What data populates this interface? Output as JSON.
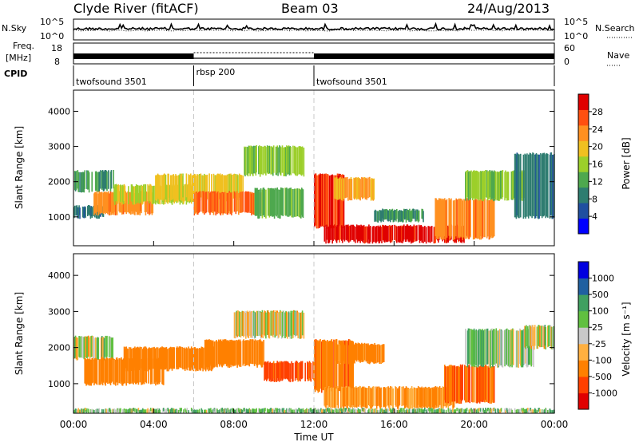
{
  "header": {
    "station": "Clyde River (fitACF)",
    "beam": "Beam 03",
    "date": "24/Aug/2013"
  },
  "top_panels": {
    "nsky_label": "N.Sky",
    "nsky_ticks": [
      "10^5",
      "10^0"
    ],
    "nsearch_label": "N.Search",
    "nsearch_ticks": [
      "10^5",
      "10^0"
    ],
    "freq_label": "Freq.",
    "freq_unit": "[MHz]",
    "freq_ticks": [
      "18",
      "8"
    ],
    "nave_label": "Nave",
    "nave_ticks": [
      "60",
      "0"
    ],
    "cpid_label": "CPID",
    "cpid_segments": [
      {
        "name": "twofsound 3501",
        "start_hour": 0,
        "end_hour": 6
      },
      {
        "name": "rbsp 200",
        "start_hour": 6,
        "end_hour": 12
      },
      {
        "name": "twofsound 3501",
        "start_hour": 12,
        "end_hour": 24
      }
    ]
  },
  "axes": {
    "xlabel": "Time UT",
    "x_ticks": [
      "00:00",
      "04:00",
      "08:00",
      "12:00",
      "16:00",
      "20:00",
      "00:00"
    ],
    "ylabel": "Slant Range [km]",
    "y_ticks": [
      "4000",
      "3000",
      "2000",
      "1000"
    ]
  },
  "colorbars": {
    "power": {
      "label": "Power [dB]",
      "ticks": [
        "28",
        "24",
        "20",
        "16",
        "12",
        "8",
        "4"
      ],
      "colors": [
        "#0000ff",
        "#1f4fa0",
        "#2e7d70",
        "#4ea84e",
        "#9ccf2a",
        "#f0c020",
        "#ff9020",
        "#ff5010",
        "#e00000"
      ]
    },
    "velocity": {
      "label": "Velocity [m s⁻¹]",
      "ticks": [
        "1000",
        "500",
        "100",
        "25",
        "-25",
        "-100",
        "-500",
        "-1000"
      ],
      "colors": [
        "#e00000",
        "#ff4000",
        "#ff8000",
        "#ffb040",
        "#c8c8c8",
        "#60c040",
        "#40a060",
        "#2060a0",
        "#0000e0"
      ]
    }
  },
  "chart_data": [
    {
      "type": "heatmap",
      "title": "",
      "xlabel": "Time UT",
      "ylabel": "Slant Range [km]",
      "xlim": [
        0,
        24
      ],
      "ylim": [
        180,
        4600
      ],
      "colorbar_label": "Power [dB]",
      "colorbar_range": [
        0,
        30
      ],
      "regions": [
        {
          "t0": 0.0,
          "t1": 2.0,
          "r0": 1750,
          "r1": 2300,
          "value": 10
        },
        {
          "t0": 0.0,
          "t1": 1.5,
          "r0": 1000,
          "r1": 1300,
          "value": 8
        },
        {
          "t0": 1.0,
          "t1": 4.0,
          "r0": 1100,
          "r1": 1700,
          "value": 22
        },
        {
          "t0": 2.0,
          "t1": 6.0,
          "r0": 1400,
          "r1": 1900,
          "value": 16
        },
        {
          "t0": 4.0,
          "t1": 8.5,
          "r0": 1500,
          "r1": 2200,
          "value": 18
        },
        {
          "t0": 6.0,
          "t1": 9.5,
          "r0": 1100,
          "r1": 1700,
          "value": 24
        },
        {
          "t0": 8.5,
          "t1": 11.5,
          "r0": 2200,
          "r1": 3000,
          "value": 14
        },
        {
          "t0": 9.0,
          "t1": 11.5,
          "r0": 1000,
          "r1": 1800,
          "value": 12
        },
        {
          "t0": 12.0,
          "t1": 13.5,
          "r0": 700,
          "r1": 2200,
          "value": 26
        },
        {
          "t0": 13.0,
          "t1": 15.0,
          "r0": 1500,
          "r1": 2100,
          "value": 20
        },
        {
          "t0": 12.5,
          "t1": 19.5,
          "r0": 300,
          "r1": 750,
          "value": 28
        },
        {
          "t0": 15.0,
          "t1": 17.5,
          "r0": 900,
          "r1": 1200,
          "value": 10
        },
        {
          "t0": 18.0,
          "t1": 21.0,
          "r0": 400,
          "r1": 1500,
          "value": 22
        },
        {
          "t0": 19.5,
          "t1": 22.5,
          "r0": 1500,
          "r1": 2300,
          "value": 14
        },
        {
          "t0": 22.0,
          "t1": 24.0,
          "r0": 1000,
          "r1": 2800,
          "value": 8
        }
      ]
    },
    {
      "type": "heatmap",
      "title": "",
      "xlabel": "Time UT",
      "ylabel": "Slant Range [km]",
      "xlim": [
        0,
        24
      ],
      "ylim": [
        180,
        4600
      ],
      "colorbar_label": "Velocity [m s⁻¹]",
      "colorbar_range": [
        -1000,
        1000
      ],
      "regions": [
        {
          "t0": 0.0,
          "t1": 2.0,
          "r0": 1700,
          "r1": 2300,
          "value": -10
        },
        {
          "t0": 0.5,
          "t1": 4.5,
          "r0": 1000,
          "r1": 1700,
          "value": -300
        },
        {
          "t0": 2.5,
          "t1": 7.0,
          "r0": 1400,
          "r1": 2000,
          "value": -250
        },
        {
          "t0": 6.5,
          "t1": 9.5,
          "r0": 1500,
          "r1": 2200,
          "value": -350
        },
        {
          "t0": 8.0,
          "t1": 11.5,
          "r0": 2300,
          "r1": 3000,
          "value": -10
        },
        {
          "t0": 9.5,
          "t1": 12.0,
          "r0": 1100,
          "r1": 1600,
          "value": -600
        },
        {
          "t0": 12.0,
          "t1": 14.0,
          "r0": 800,
          "r1": 2200,
          "value": -400
        },
        {
          "t0": 13.0,
          "t1": 15.5,
          "r0": 1600,
          "r1": 2100,
          "value": -200
        },
        {
          "t0": 12.5,
          "t1": 19.0,
          "r0": 350,
          "r1": 900,
          "value": -150
        },
        {
          "t0": 18.5,
          "t1": 21.0,
          "r0": 500,
          "r1": 1500,
          "value": -500
        },
        {
          "t0": 19.5,
          "t1": 23.0,
          "r0": 1500,
          "r1": 2500,
          "value": 60
        },
        {
          "t0": 22.5,
          "t1": 24.0,
          "r0": 2000,
          "r1": 2600,
          "value": -10
        },
        {
          "t0": 0.0,
          "t1": 24.0,
          "r0": 180,
          "r1": 300,
          "value": 60
        }
      ]
    }
  ]
}
